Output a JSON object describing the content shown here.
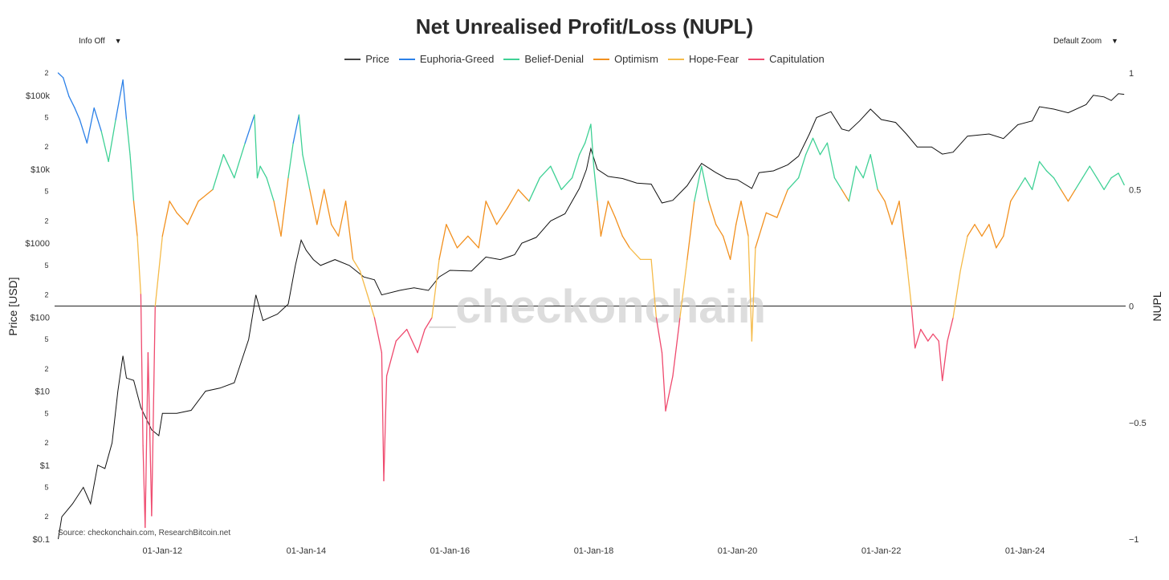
{
  "header": {
    "title": "Net Unrealised Profit/Loss (NUPL)",
    "info_toggle": "Info Off",
    "zoom_select": "Default Zoom"
  },
  "legend": [
    {
      "label": "Price",
      "color": "#444444"
    },
    {
      "label": "Euphoria-Greed",
      "color": "#2b80e8"
    },
    {
      "label": "Belief-Denial",
      "color": "#3fd195"
    },
    {
      "label": "Optimism",
      "color": "#f2901e"
    },
    {
      "label": "Hope-Fear",
      "color": "#f5bb4a"
    },
    {
      "label": "Capitulation",
      "color": "#ef4a6e"
    }
  ],
  "chart_data": {
    "type": "line",
    "title": "Net Unrealised Profit/Loss (NUPL)",
    "xlabel": "",
    "x_ticks": [
      "01-Jan-12",
      "01-Jan-14",
      "01-Jan-16",
      "01-Jan-18",
      "01-Jan-20",
      "01-Jan-22",
      "01-Jan-24"
    ],
    "x_tick_years": [
      2012,
      2014,
      2016,
      2018,
      2020,
      2022,
      2024
    ],
    "xlim": [
      2010.5,
      2025.4
    ],
    "y_left": {
      "label": "Price [USD]",
      "scale": "log",
      "range": [
        0.1,
        200000
      ],
      "major_ticks": [
        {
          "value": 100000,
          "label": "$100k"
        },
        {
          "value": 10000,
          "label": "$10k"
        },
        {
          "value": 1000,
          "label": "$1000"
        },
        {
          "value": 100,
          "label": "$100"
        },
        {
          "value": 10,
          "label": "$10"
        },
        {
          "value": 1,
          "label": "$1"
        },
        {
          "value": 0.1,
          "label": "$0.1"
        }
      ],
      "minor_ticks": [
        {
          "value": 200000,
          "label": "2"
        },
        {
          "value": 50000,
          "label": "5"
        },
        {
          "value": 20000,
          "label": "2"
        },
        {
          "value": 5000,
          "label": "5"
        },
        {
          "value": 2000,
          "label": "2"
        },
        {
          "value": 500,
          "label": "5"
        },
        {
          "value": 200,
          "label": "2"
        },
        {
          "value": 50,
          "label": "5"
        },
        {
          "value": 20,
          "label": "2"
        },
        {
          "value": 5,
          "label": "5"
        },
        {
          "value": 2,
          "label": "2"
        },
        {
          "value": 0.5,
          "label": "5"
        },
        {
          "value": 0.2,
          "label": "2"
        }
      ]
    },
    "y_right": {
      "label": "NUPL",
      "range": [
        -1,
        1
      ],
      "ticks": [
        {
          "value": 1,
          "label": "1"
        },
        {
          "value": 0.5,
          "label": "0.5"
        },
        {
          "value": 0,
          "label": "0"
        },
        {
          "value": -0.5,
          "label": "−0.5"
        },
        {
          "value": -1,
          "label": "−1"
        }
      ]
    },
    "zones": [
      {
        "name": "Euphoria-Greed",
        "min": 0.75,
        "color": "#2b80e8"
      },
      {
        "name": "Belief-Denial",
        "min": 0.5,
        "color": "#3fd195"
      },
      {
        "name": "Optimism",
        "min": 0.25,
        "color": "#f2901e"
      },
      {
        "name": "Hope-Fear",
        "min": 0.0,
        "color": "#f5bb4a"
      },
      {
        "name": "Capitulation",
        "min": -1.0,
        "color": "#ef4a6e"
      }
    ],
    "series": [
      {
        "name": "Price",
        "color": "#111111",
        "points": [
          [
            2010.55,
            0.1
          ],
          [
            2010.6,
            0.2
          ],
          [
            2010.75,
            0.3
          ],
          [
            2010.9,
            0.5
          ],
          [
            2011.0,
            0.3
          ],
          [
            2011.1,
            1
          ],
          [
            2011.2,
            0.9
          ],
          [
            2011.3,
            2
          ],
          [
            2011.38,
            10
          ],
          [
            2011.45,
            30
          ],
          [
            2011.5,
            15
          ],
          [
            2011.6,
            14
          ],
          [
            2011.7,
            6
          ],
          [
            2011.85,
            3
          ],
          [
            2011.95,
            2.5
          ],
          [
            2012.0,
            5
          ],
          [
            2012.2,
            5
          ],
          [
            2012.4,
            5.5
          ],
          [
            2012.6,
            10
          ],
          [
            2012.8,
            11
          ],
          [
            2013.0,
            13
          ],
          [
            2013.2,
            50
          ],
          [
            2013.3,
            200
          ],
          [
            2013.4,
            90
          ],
          [
            2013.5,
            100
          ],
          [
            2013.6,
            110
          ],
          [
            2013.75,
            150
          ],
          [
            2013.85,
            500
          ],
          [
            2013.93,
            1100
          ],
          [
            2014.0,
            800
          ],
          [
            2014.1,
            600
          ],
          [
            2014.2,
            500
          ],
          [
            2014.4,
            600
          ],
          [
            2014.6,
            500
          ],
          [
            2014.8,
            350
          ],
          [
            2014.95,
            320
          ],
          [
            2015.05,
            200
          ],
          [
            2015.3,
            230
          ],
          [
            2015.5,
            250
          ],
          [
            2015.7,
            230
          ],
          [
            2015.85,
            350
          ],
          [
            2016.0,
            430
          ],
          [
            2016.3,
            420
          ],
          [
            2016.5,
            650
          ],
          [
            2016.7,
            600
          ],
          [
            2016.9,
            700
          ],
          [
            2017.0,
            1000
          ],
          [
            2017.2,
            1200
          ],
          [
            2017.4,
            2000
          ],
          [
            2017.6,
            2500
          ],
          [
            2017.8,
            5500
          ],
          [
            2017.9,
            10000
          ],
          [
            2017.96,
            19000
          ],
          [
            2018.05,
            10000
          ],
          [
            2018.2,
            8000
          ],
          [
            2018.4,
            7500
          ],
          [
            2018.6,
            6500
          ],
          [
            2018.8,
            6300
          ],
          [
            2018.95,
            3500
          ],
          [
            2019.1,
            3800
          ],
          [
            2019.3,
            6000
          ],
          [
            2019.5,
            12000
          ],
          [
            2019.7,
            9000
          ],
          [
            2019.85,
            7500
          ],
          [
            2020.0,
            7200
          ],
          [
            2020.2,
            5500
          ],
          [
            2020.3,
            9000
          ],
          [
            2020.5,
            9500
          ],
          [
            2020.7,
            11500
          ],
          [
            2020.85,
            15000
          ],
          [
            2021.0,
            30000
          ],
          [
            2021.1,
            50000
          ],
          [
            2021.3,
            60000
          ],
          [
            2021.45,
            35000
          ],
          [
            2021.55,
            33000
          ],
          [
            2021.7,
            45000
          ],
          [
            2021.85,
            65000
          ],
          [
            2022.0,
            47000
          ],
          [
            2022.2,
            43000
          ],
          [
            2022.35,
            30000
          ],
          [
            2022.5,
            20000
          ],
          [
            2022.7,
            20000
          ],
          [
            2022.85,
            16000
          ],
          [
            2023.0,
            17000
          ],
          [
            2023.2,
            28000
          ],
          [
            2023.5,
            30000
          ],
          [
            2023.7,
            26000
          ],
          [
            2023.9,
            40000
          ],
          [
            2024.1,
            45000
          ],
          [
            2024.2,
            70000
          ],
          [
            2024.4,
            65000
          ],
          [
            2024.6,
            58000
          ],
          [
            2024.85,
            75000
          ],
          [
            2024.95,
            100000
          ],
          [
            2025.1,
            95000
          ],
          [
            2025.2,
            85000
          ],
          [
            2025.3,
            105000
          ],
          [
            2025.38,
            103000
          ]
        ]
      },
      {
        "name": "NUPL",
        "axis": "right",
        "points": [
          [
            2010.55,
            1.0
          ],
          [
            2010.62,
            0.98
          ],
          [
            2010.7,
            0.9
          ],
          [
            2010.78,
            0.85
          ],
          [
            2010.85,
            0.8
          ],
          [
            2010.95,
            0.7
          ],
          [
            2011.05,
            0.85
          ],
          [
            2011.15,
            0.75
          ],
          [
            2011.25,
            0.62
          ],
          [
            2011.35,
            0.8
          ],
          [
            2011.45,
            0.97
          ],
          [
            2011.5,
            0.8
          ],
          [
            2011.55,
            0.65
          ],
          [
            2011.6,
            0.45
          ],
          [
            2011.65,
            0.3
          ],
          [
            2011.7,
            0.05
          ],
          [
            2011.73,
            -0.6
          ],
          [
            2011.76,
            -0.95
          ],
          [
            2011.8,
            -0.2
          ],
          [
            2011.85,
            -0.9
          ],
          [
            2011.9,
            0.0
          ],
          [
            2011.95,
            0.15
          ],
          [
            2012.0,
            0.3
          ],
          [
            2012.1,
            0.45
          ],
          [
            2012.2,
            0.4
          ],
          [
            2012.35,
            0.35
          ],
          [
            2012.5,
            0.45
          ],
          [
            2012.7,
            0.5
          ],
          [
            2012.85,
            0.65
          ],
          [
            2013.0,
            0.55
          ],
          [
            2013.15,
            0.7
          ],
          [
            2013.28,
            0.82
          ],
          [
            2013.32,
            0.55
          ],
          [
            2013.36,
            0.6
          ],
          [
            2013.45,
            0.55
          ],
          [
            2013.55,
            0.45
          ],
          [
            2013.65,
            0.3
          ],
          [
            2013.75,
            0.55
          ],
          [
            2013.82,
            0.7
          ],
          [
            2013.9,
            0.82
          ],
          [
            2013.95,
            0.65
          ],
          [
            2014.05,
            0.5
          ],
          [
            2014.15,
            0.35
          ],
          [
            2014.25,
            0.5
          ],
          [
            2014.35,
            0.35
          ],
          [
            2014.45,
            0.3
          ],
          [
            2014.55,
            0.45
          ],
          [
            2014.65,
            0.2
          ],
          [
            2014.75,
            0.15
          ],
          [
            2014.85,
            0.05
          ],
          [
            2014.95,
            -0.05
          ],
          [
            2015.05,
            -0.2
          ],
          [
            2015.08,
            -0.75
          ],
          [
            2015.12,
            -0.3
          ],
          [
            2015.25,
            -0.15
          ],
          [
            2015.4,
            -0.1
          ],
          [
            2015.55,
            -0.2
          ],
          [
            2015.65,
            -0.1
          ],
          [
            2015.75,
            -0.05
          ],
          [
            2015.85,
            0.2
          ],
          [
            2015.95,
            0.35
          ],
          [
            2016.1,
            0.25
          ],
          [
            2016.25,
            0.3
          ],
          [
            2016.4,
            0.25
          ],
          [
            2016.5,
            0.45
          ],
          [
            2016.65,
            0.35
          ],
          [
            2016.8,
            0.42
          ],
          [
            2016.95,
            0.5
          ],
          [
            2017.1,
            0.45
          ],
          [
            2017.25,
            0.55
          ],
          [
            2017.4,
            0.6
          ],
          [
            2017.55,
            0.5
          ],
          [
            2017.7,
            0.55
          ],
          [
            2017.8,
            0.65
          ],
          [
            2017.88,
            0.7
          ],
          [
            2017.96,
            0.78
          ],
          [
            2018.0,
            0.6
          ],
          [
            2018.05,
            0.45
          ],
          [
            2018.1,
            0.3
          ],
          [
            2018.2,
            0.45
          ],
          [
            2018.3,
            0.38
          ],
          [
            2018.4,
            0.3
          ],
          [
            2018.5,
            0.25
          ],
          [
            2018.65,
            0.2
          ],
          [
            2018.8,
            0.2
          ],
          [
            2018.87,
            -0.05
          ],
          [
            2018.95,
            -0.2
          ],
          [
            2019.0,
            -0.45
          ],
          [
            2019.1,
            -0.3
          ],
          [
            2019.2,
            -0.05
          ],
          [
            2019.3,
            0.2
          ],
          [
            2019.4,
            0.45
          ],
          [
            2019.5,
            0.6
          ],
          [
            2019.6,
            0.45
          ],
          [
            2019.7,
            0.35
          ],
          [
            2019.8,
            0.3
          ],
          [
            2019.9,
            0.2
          ],
          [
            2019.98,
            0.35
          ],
          [
            2020.05,
            0.45
          ],
          [
            2020.15,
            0.3
          ],
          [
            2020.2,
            -0.15
          ],
          [
            2020.25,
            0.25
          ],
          [
            2020.4,
            0.4
          ],
          [
            2020.55,
            0.38
          ],
          [
            2020.7,
            0.5
          ],
          [
            2020.85,
            0.55
          ],
          [
            2020.95,
            0.65
          ],
          [
            2021.05,
            0.72
          ],
          [
            2021.15,
            0.65
          ],
          [
            2021.25,
            0.7
          ],
          [
            2021.35,
            0.55
          ],
          [
            2021.45,
            0.5
          ],
          [
            2021.55,
            0.45
          ],
          [
            2021.65,
            0.6
          ],
          [
            2021.75,
            0.55
          ],
          [
            2021.85,
            0.65
          ],
          [
            2021.95,
            0.5
          ],
          [
            2022.05,
            0.45
          ],
          [
            2022.15,
            0.35
          ],
          [
            2022.25,
            0.45
          ],
          [
            2022.35,
            0.2
          ],
          [
            2022.42,
            0.0
          ],
          [
            2022.47,
            -0.18
          ],
          [
            2022.55,
            -0.1
          ],
          [
            2022.65,
            -0.15
          ],
          [
            2022.72,
            -0.12
          ],
          [
            2022.8,
            -0.15
          ],
          [
            2022.85,
            -0.32
          ],
          [
            2022.92,
            -0.15
          ],
          [
            2023.0,
            -0.05
          ],
          [
            2023.1,
            0.15
          ],
          [
            2023.2,
            0.3
          ],
          [
            2023.3,
            0.35
          ],
          [
            2023.4,
            0.3
          ],
          [
            2023.5,
            0.35
          ],
          [
            2023.6,
            0.25
          ],
          [
            2023.7,
            0.3
          ],
          [
            2023.8,
            0.45
          ],
          [
            2023.9,
            0.5
          ],
          [
            2024.0,
            0.55
          ],
          [
            2024.1,
            0.5
          ],
          [
            2024.2,
            0.62
          ],
          [
            2024.3,
            0.58
          ],
          [
            2024.4,
            0.55
          ],
          [
            2024.5,
            0.5
          ],
          [
            2024.6,
            0.45
          ],
          [
            2024.7,
            0.5
          ],
          [
            2024.8,
            0.55
          ],
          [
            2024.9,
            0.6
          ],
          [
            2025.0,
            0.55
          ],
          [
            2025.1,
            0.5
          ],
          [
            2025.2,
            0.55
          ],
          [
            2025.3,
            0.57
          ],
          [
            2025.38,
            0.52
          ]
        ]
      }
    ]
  },
  "watermark": "_checkonchain",
  "source": "Source: checkonchain.com, ResearchBitcoin.net"
}
